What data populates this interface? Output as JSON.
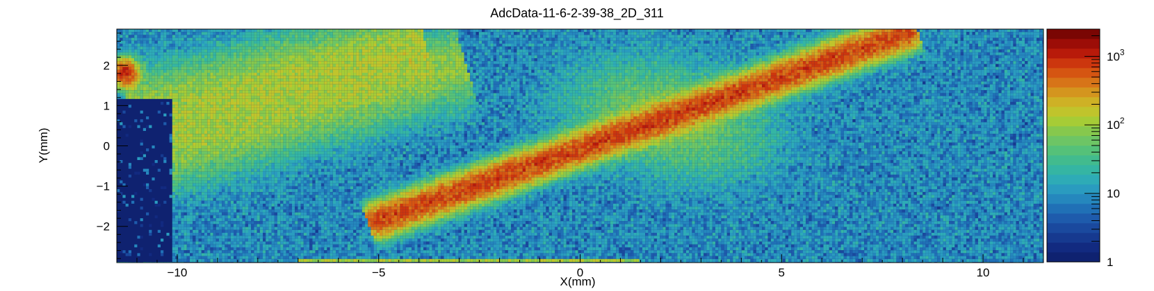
{
  "chart_data": {
    "type": "heatmap",
    "title": "AdcData-11-6-2-39-38_2D_311",
    "xlabel": "X(mm)",
    "ylabel": "Y(mm)",
    "xlim": [
      -11.5,
      11.5
    ],
    "ylim": [
      -2.9,
      2.9
    ],
    "x_ticks": [
      -10,
      -5,
      0,
      5,
      10
    ],
    "x_tick_labels": [
      "−10",
      "−5",
      "0",
      "5",
      "10"
    ],
    "y_ticks": [
      -2,
      -1,
      0,
      1,
      2
    ],
    "y_tick_labels": [
      "−2",
      "−1",
      "0",
      "1",
      "2"
    ],
    "z_scale": "log",
    "z_range": [
      1,
      2500
    ],
    "z_ticks": [
      1,
      10,
      100,
      1000
    ],
    "z_tick_labels": [
      "1",
      "10",
      "10^2",
      "10^3"
    ],
    "colorbar_colors": [
      "#0f2270",
      "#122a80",
      "#16398f",
      "#1a499e",
      "#1e5bac",
      "#2070b6",
      "#2587bd",
      "#2a9bbf",
      "#2eabb6",
      "#35b5a3",
      "#42bb8e",
      "#55c179",
      "#6dc565",
      "#86c84d",
      "#a6cc36",
      "#c0c42c",
      "#ceb125",
      "#d4951e",
      "#d77418",
      "#d55512",
      "#cc360e",
      "#b81a0a",
      "#9c0d07",
      "#7a0603"
    ],
    "features": [
      {
        "kind": "band",
        "from": [
          -5.0,
          -1.85
        ],
        "to": [
          8.1,
          2.8
        ],
        "peak_count": 700
      },
      {
        "kind": "faint-band",
        "from": [
          -11.2,
          -0.4
        ],
        "to": [
          -3.0,
          2.0
        ],
        "peak_count": 80
      },
      {
        "kind": "faint-band",
        "from": [
          -11.0,
          0.8
        ],
        "to": [
          -4.0,
          2.6
        ],
        "peak_count": 90
      },
      {
        "kind": "blob",
        "center": [
          1.5,
          1.0
        ],
        "peak_count": 45
      },
      {
        "kind": "blob",
        "center": [
          3.0,
          0.3
        ],
        "peak_count": 40
      },
      {
        "kind": "bottom-edge-line",
        "y": -2.85,
        "x_range": [
          -7.0,
          1.5
        ],
        "peak_count": 100
      },
      {
        "kind": "hot-spot",
        "center": [
          -11.3,
          1.8
        ],
        "peak_count": 900
      },
      {
        "kind": "empty-region",
        "x_range": [
          -11.5,
          -10.1
        ],
        "y_range": [
          -2.9,
          1.2
        ]
      }
    ]
  }
}
